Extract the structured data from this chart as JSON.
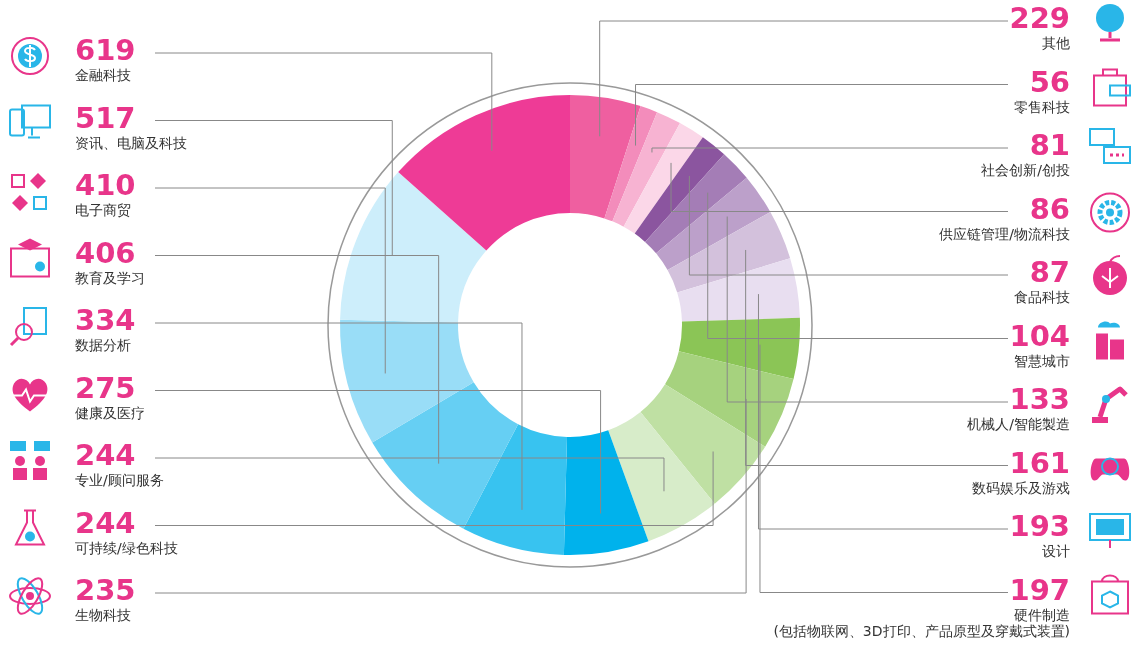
{
  "chart_data": {
    "type": "donut",
    "categories": [
      "其他",
      "零售科技",
      "社会创新/创投",
      "供应链管理/物流科技",
      "食品科技",
      "智慧城市",
      "机械人/智能製造",
      "数码娱乐及游戏",
      "设计",
      "硬件制造\n(包括物联网、3D打印、产品原型及穿戴式装置)",
      "生物科技",
      "可持续/绿色科技",
      "专业/顾问服务",
      "健康及医疗",
      "数据分析",
      "教育及学习",
      "电子商贸",
      "资讯、电脑及科技",
      "金融科技"
    ],
    "values": [
      229,
      56,
      81,
      86,
      87,
      104,
      133,
      161,
      193,
      197,
      235,
      244,
      244,
      275,
      334,
      406,
      410,
      517,
      619
    ],
    "colors": [
      "#ef5fa0",
      "#f38cbb",
      "#f7b3d2",
      "#fbd7e8",
      "#8b559f",
      "#a47db6",
      "#bca0ca",
      "#d3c1dc",
      "#e8def0",
      "#8bc556",
      "#a6d27e",
      "#bfe0a3",
      "#d7ecc9",
      "#00b2ec",
      "#38c3f0",
      "#66cff3",
      "#99ddf7",
      "#cdeefb",
      "#ee3b96"
    ],
    "data_labels": true
  }
}
